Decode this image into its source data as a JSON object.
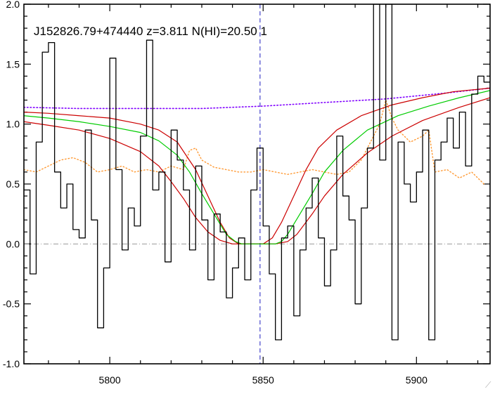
{
  "chart_data": {
    "type": "line",
    "title": "J152826.79+474440 z=3.811 N(HI)=20.50 1",
    "xlabel": "",
    "ylabel": "",
    "xlim": [
      5772,
      5924
    ],
    "ylim": [
      -1.0,
      2.0
    ],
    "xticks": [
      5800,
      5850,
      5900
    ],
    "yticks": [
      -1.0,
      -0.5,
      0.0,
      0.5,
      1.0,
      1.5,
      2.0
    ],
    "ytick_labels": [
      "-1.0",
      "-0.5",
      "0.0",
      "0.5",
      "1.0",
      "1.5",
      "2.0"
    ],
    "grid": false,
    "vline_x": 5849,
    "hline_y": 0.0,
    "colors": {
      "flux": "#000000",
      "model": "#00cc00",
      "model_bounds": "#cc0000",
      "continuum": "#8000ff",
      "error": "#ff9933",
      "vline": "#2020c0",
      "zero_line": "#999999"
    },
    "series": [
      {
        "style": "step",
        "x": [
          5772,
          5774,
          5776,
          5778,
          5780,
          5782,
          5784,
          5786,
          5788,
          5790,
          5792,
          5794,
          5796,
          5798,
          5800,
          5802,
          5804,
          5806,
          5808,
          5810,
          5812,
          5814,
          5816,
          5818,
          5820,
          5822,
          5824,
          5826,
          5828,
          5830,
          5832,
          5834,
          5836,
          5838,
          5840,
          5842,
          5844,
          5846,
          5848,
          5850,
          5852,
          5854,
          5856,
          5858,
          5860,
          5862,
          5864,
          5866,
          5868,
          5870,
          5872,
          5874,
          5876,
          5878,
          5880,
          5882,
          5884,
          5886,
          5888,
          5890,
          5892,
          5894,
          5896,
          5898,
          5900,
          5902,
          5904,
          5906,
          5908,
          5910,
          5912,
          5914,
          5916,
          5918,
          5920,
          5922
        ],
        "y": [
          0.45,
          -0.25,
          0.85,
          1.6,
          1.68,
          0.6,
          0.3,
          0.5,
          0.12,
          0.05,
          0.95,
          0.2,
          -0.7,
          -0.2,
          1.55,
          0.62,
          -0.05,
          0.3,
          0.15,
          0.9,
          1.7,
          0.45,
          0.6,
          -0.15,
          0.95,
          0.7,
          0.45,
          -0.05,
          0.65,
          0.2,
          -0.3,
          0.25,
          0.1,
          -0.45,
          -0.2,
          0.05,
          -0.3,
          0.45,
          0.8,
          0.15,
          -0.25,
          -0.8,
          0.05,
          0.15,
          -0.6,
          -0.05,
          0.3,
          0.55,
          0.05,
          -0.35,
          -0.05,
          0.9,
          0.4,
          0.2,
          -0.5,
          0.3,
          0.8,
          2.0,
          0.7,
          2.0,
          -0.8,
          0.85,
          0.5,
          0.35,
          0.6,
          0.95,
          -0.8,
          0.7,
          0.85,
          1.05,
          0.8,
          1.1,
          0.65,
          1.25,
          1.4,
          1.35
        ]
      },
      {
        "style": "smooth",
        "x": [
          5772,
          5780,
          5790,
          5800,
          5810,
          5816,
          5822,
          5826,
          5830,
          5834,
          5838,
          5841,
          5843,
          5846,
          5850,
          5854,
          5856,
          5858,
          5862,
          5866,
          5870,
          5876,
          5884,
          5894,
          5904,
          5914,
          5924
        ],
        "y": [
          1.07,
          1.05,
          1.02,
          0.98,
          0.93,
          0.86,
          0.74,
          0.6,
          0.42,
          0.25,
          0.08,
          0.02,
          0.0,
          0.0,
          0.0,
          0.0,
          0.02,
          0.08,
          0.25,
          0.42,
          0.6,
          0.78,
          0.95,
          1.07,
          1.15,
          1.22,
          1.28
        ]
      },
      {
        "style": "smooth",
        "x": [
          5772,
          5780,
          5790,
          5800,
          5810,
          5816,
          5822,
          5828,
          5832,
          5836,
          5839,
          5842,
          5846,
          5850,
          5853,
          5856,
          5860,
          5864,
          5868,
          5874,
          5882,
          5892,
          5902,
          5912,
          5924
        ],
        "y": [
          1.1,
          1.09,
          1.07,
          1.05,
          1.0,
          0.95,
          0.85,
          0.62,
          0.4,
          0.18,
          0.05,
          0.0,
          0.0,
          0.0,
          0.05,
          0.18,
          0.4,
          0.62,
          0.8,
          0.95,
          1.07,
          1.16,
          1.22,
          1.27,
          1.3
        ]
      },
      {
        "style": "smooth",
        "x": [
          5772,
          5780,
          5790,
          5800,
          5810,
          5816,
          5820,
          5824,
          5828,
          5832,
          5836,
          5840,
          5843,
          5846,
          5850,
          5854,
          5858,
          5861,
          5866,
          5870,
          5876,
          5884,
          5892,
          5902,
          5914,
          5924
        ],
        "y": [
          1.02,
          0.99,
          0.95,
          0.88,
          0.77,
          0.65,
          0.52,
          0.38,
          0.22,
          0.1,
          0.03,
          0.0,
          0.0,
          0.0,
          0.0,
          0.0,
          0.02,
          0.08,
          0.25,
          0.4,
          0.58,
          0.76,
          0.9,
          1.03,
          1.14,
          1.22
        ]
      },
      {
        "style": "dotted",
        "x": [
          5772,
          5790,
          5810,
          5830,
          5850,
          5870,
          5890,
          5910,
          5924
        ],
        "y": [
          1.14,
          1.13,
          1.13,
          1.13,
          1.15,
          1.18,
          1.21,
          1.26,
          1.3
        ]
      },
      {
        "style": "dotted",
        "x": [
          5772,
          5776,
          5780,
          5784,
          5788,
          5792,
          5796,
          5800,
          5804,
          5808,
          5812,
          5816,
          5820,
          5824,
          5826,
          5828,
          5830,
          5834,
          5838,
          5842,
          5846,
          5850,
          5854,
          5858,
          5862,
          5866,
          5870,
          5874,
          5878,
          5882,
          5886,
          5888,
          5890,
          5892,
          5894,
          5898,
          5902,
          5904,
          5906,
          5910,
          5914,
          5918,
          5922
        ],
        "y": [
          0.62,
          0.6,
          0.65,
          0.7,
          0.72,
          0.68,
          0.6,
          0.62,
          0.65,
          0.6,
          0.62,
          0.6,
          0.65,
          0.62,
          0.78,
          0.8,
          0.7,
          0.64,
          0.62,
          0.6,
          0.6,
          0.62,
          0.6,
          0.58,
          0.6,
          0.62,
          0.6,
          0.58,
          0.6,
          0.7,
          0.9,
          1.0,
          1.2,
          1.05,
          0.95,
          0.85,
          0.9,
          0.95,
          0.6,
          0.62,
          0.55,
          0.6,
          0.5
        ]
      }
    ]
  },
  "ui": {
    "corner_glyph": "⟋"
  }
}
